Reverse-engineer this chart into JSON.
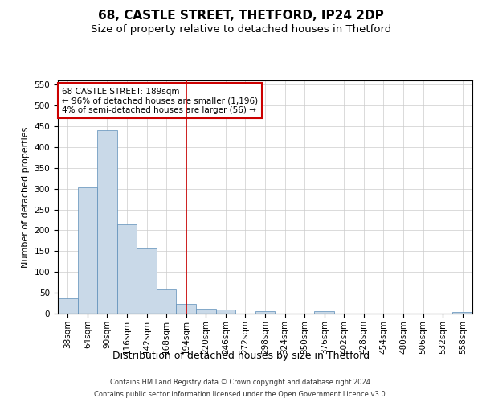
{
  "title1": "68, CASTLE STREET, THETFORD, IP24 2DP",
  "title2": "Size of property relative to detached houses in Thetford",
  "xlabel": "Distribution of detached houses by size in Thetford",
  "ylabel": "Number of detached properties",
  "footer1": "Contains HM Land Registry data © Crown copyright and database right 2024.",
  "footer2": "Contains public sector information licensed under the Open Government Licence v3.0.",
  "annotation_line1": "68 CASTLE STREET: 189sqm",
  "annotation_line2": "← 96% of detached houses are smaller (1,196)",
  "annotation_line3": "4% of semi-detached houses are larger (56) →",
  "bar_labels": [
    "38sqm",
    "64sqm",
    "90sqm",
    "116sqm",
    "142sqm",
    "168sqm",
    "194sqm",
    "220sqm",
    "246sqm",
    "272sqm",
    "298sqm",
    "324sqm",
    "350sqm",
    "376sqm",
    "402sqm",
    "428sqm",
    "454sqm",
    "480sqm",
    "506sqm",
    "532sqm",
    "558sqm"
  ],
  "bar_values": [
    36,
    303,
    441,
    215,
    157,
    58,
    24,
    11,
    9,
    0,
    6,
    0,
    0,
    5,
    0,
    0,
    0,
    0,
    0,
    0,
    4
  ],
  "bar_color": "#c9d9e8",
  "bar_edge_color": "#5b8db8",
  "vline_x": 6,
  "vline_color": "#cc0000",
  "annotation_box_color": "#cc0000",
  "ylim": [
    0,
    560
  ],
  "yticks": [
    0,
    50,
    100,
    150,
    200,
    250,
    300,
    350,
    400,
    450,
    500,
    550
  ],
  "background_color": "#ffffff",
  "grid_color": "#cccccc",
  "title_fontsize": 11,
  "subtitle_fontsize": 9.5,
  "axis_label_fontsize": 8,
  "ylabel_fontsize": 8,
  "tick_fontsize": 7.5,
  "annotation_fontsize": 7.5,
  "footer_fontsize": 6
}
